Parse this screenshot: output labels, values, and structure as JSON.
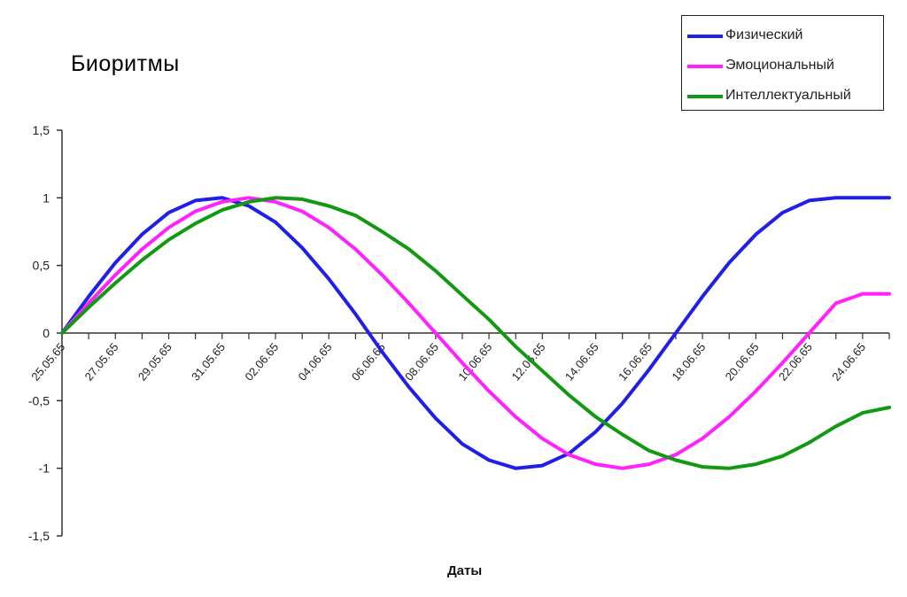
{
  "chart_data": {
    "type": "line",
    "title": "Биоритмы",
    "xlabel": "Даты",
    "ylabel": "",
    "ylim": [
      -1.5,
      1.5
    ],
    "y_ticks": [
      "1,5",
      "1",
      "0,5",
      "0",
      "-0,5",
      "-1",
      "-1,5"
    ],
    "y_tick_values": [
      1.5,
      1,
      0.5,
      0,
      -0.5,
      -1,
      -1.5
    ],
    "x": [
      "25.05.65",
      "26.05.65",
      "27.05.65",
      "28.05.65",
      "29.05.65",
      "30.05.65",
      "31.05.65",
      "01.06.65",
      "02.06.65",
      "03.06.65",
      "04.06.65",
      "05.06.65",
      "06.06.65",
      "07.06.65",
      "08.06.65",
      "09.06.65",
      "10.06.65",
      "11.06.65",
      "12.06.65",
      "13.06.65",
      "14.06.65",
      "15.06.65",
      "16.06.65",
      "17.06.65",
      "18.06.65",
      "19.06.65",
      "20.06.65",
      "21.06.65",
      "22.06.65",
      "23.06.65",
      "24.06.65",
      "25.06.65"
    ],
    "x_tick_labels": [
      "25.05.65",
      "27.05.65",
      "29.05.65",
      "31.05.65",
      "02.06.65",
      "04.06.65",
      "06.06.65",
      "08.06.65",
      "10.06.65",
      "12.06.65",
      "14.06.65",
      "16.06.65",
      "18.06.65",
      "20.06.65",
      "22.06.65",
      "24.06.65"
    ],
    "grid": false,
    "legend_position": "top-right",
    "series": [
      {
        "name": "Физический",
        "color": "#1f1fe6",
        "values": [
          0,
          0.27,
          0.52,
          0.73,
          0.89,
          0.98,
          1.0,
          0.94,
          0.82,
          0.63,
          0.4,
          0.14,
          -0.14,
          -0.4,
          -0.63,
          -0.82,
          -0.94,
          -1.0,
          -0.98,
          -0.89,
          -0.73,
          -0.52,
          -0.27,
          0.0,
          0.27,
          0.52,
          0.73,
          0.89,
          0.98,
          1.0,
          1.0,
          1.0
        ]
      },
      {
        "name": "Эмоциональный",
        "color": "#ff22ff",
        "values": [
          0,
          0.22,
          0.43,
          0.62,
          0.78,
          0.9,
          0.97,
          1.0,
          0.97,
          0.9,
          0.78,
          0.62,
          0.43,
          0.22,
          0.0,
          -0.22,
          -0.43,
          -0.62,
          -0.78,
          -0.9,
          -0.97,
          -1.0,
          -0.97,
          -0.9,
          -0.78,
          -0.62,
          -0.43,
          -0.22,
          0.0,
          0.22,
          0.29,
          0.29
        ]
      },
      {
        "name": "Интеллектуальный",
        "color": "#119911",
        "values": [
          0,
          0.19,
          0.37,
          0.54,
          0.69,
          0.81,
          0.91,
          0.97,
          1.0,
          0.99,
          0.94,
          0.87,
          0.75,
          0.62,
          0.46,
          0.28,
          0.1,
          -0.1,
          -0.28,
          -0.46,
          -0.62,
          -0.75,
          -0.87,
          -0.94,
          -0.99,
          -1.0,
          -0.97,
          -0.91,
          -0.81,
          -0.69,
          -0.59,
          -0.55
        ]
      }
    ]
  }
}
